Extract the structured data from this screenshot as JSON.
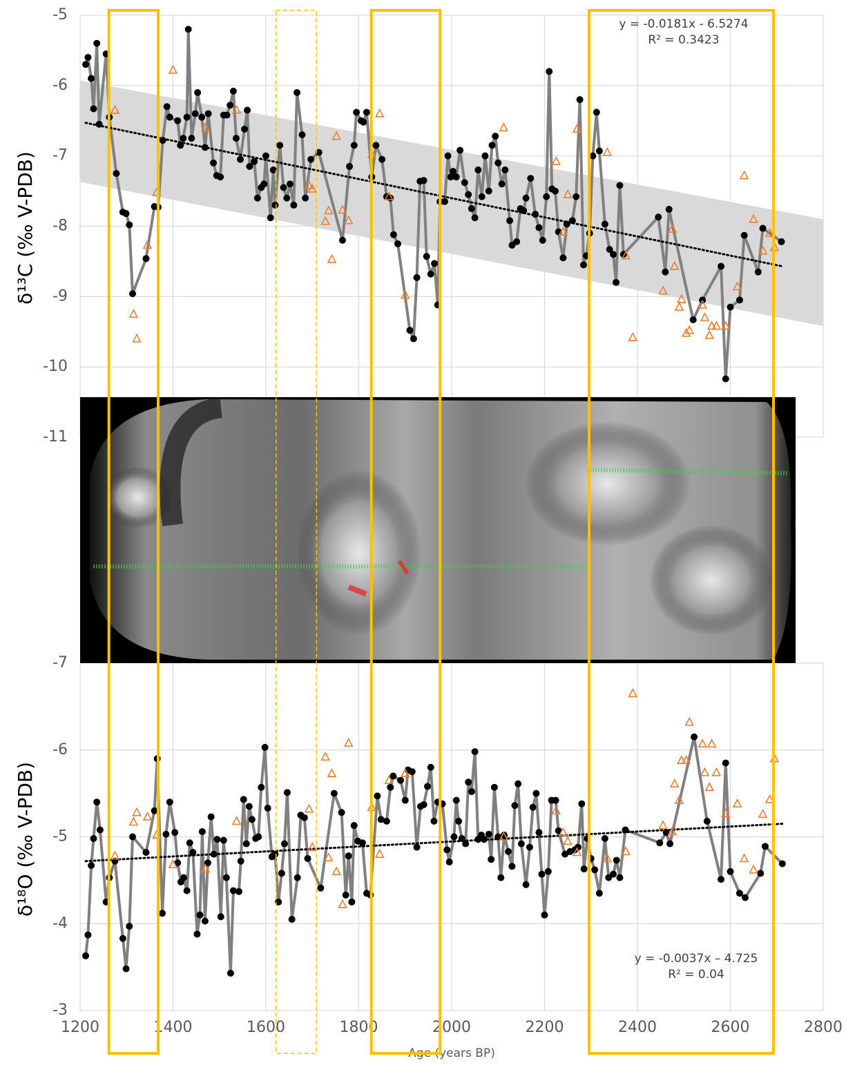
{
  "chart_data": [
    {
      "type": "scatter",
      "ylabel": "δ¹³C (‰ V-PDB)",
      "xlim": [
        1200,
        2800
      ],
      "xticks": [
        1200,
        1400,
        1600,
        1800,
        2000,
        2200,
        2400,
        2600,
        2800
      ],
      "show_x_labels": false,
      "ylim": [
        -11,
        -5
      ],
      "yticks": [
        -11,
        -10,
        -9,
        -8,
        -7,
        -6,
        -5
      ],
      "grid": true,
      "annotations": [
        "y = -0.0181x - 6.5274",
        "R² = 0.3423"
      ],
      "band": {
        "x": [
          1200,
          2800
        ],
        "upper": [
          -5.93,
          -7.9
        ],
        "lower": [
          -7.37,
          -9.42
        ],
        "color": "#d9d9d9"
      },
      "trend": {
        "x": [
          1212,
          2712
        ],
        "values": [
          -6.53,
          -8.57
        ],
        "color": "#000000"
      },
      "series": [
        {
          "marker": "circle",
          "color": "#000000",
          "line_color": "#808080",
          "x": [
            1212,
            1217,
            1224,
            1229,
            1236,
            1241,
            1256,
            1263,
            1278,
            1292,
            1299,
            1306,
            1313,
            1342,
            1360,
            1368,
            1378,
            1387,
            1393,
            1410,
            1416,
            1422,
            1430,
            1433,
            1440,
            1448,
            1453,
            1462,
            1469,
            1476,
            1487,
            1494,
            1502,
            1509,
            1516,
            1523,
            1530,
            1536,
            1545,
            1554,
            1560,
            1565,
            1575,
            1582,
            1590,
            1596,
            1600,
            1610,
            1616,
            1620,
            1630,
            1638,
            1645,
            1652,
            1660,
            1667,
            1678,
            1685,
            1697,
            1714,
            1765,
            1780,
            1790,
            1795,
            1805,
            1810,
            1817,
            1828,
            1837,
            1850,
            1860,
            1868,
            1875,
            1884,
            1910,
            1918,
            1925,
            1932,
            1940,
            1946,
            1955,
            1963,
            1970,
            1975,
            1985,
            1992,
            1998,
            2003,
            2010,
            2018,
            2028,
            2036,
            2043,
            2050,
            2057,
            2065,
            2072,
            2080,
            2087,
            2094,
            2100,
            2108,
            2115,
            2125,
            2130,
            2140,
            2148,
            2155,
            2160,
            2170,
            2180,
            2188,
            2196,
            2204,
            2210,
            2216,
            2223,
            2230,
            2240,
            2248,
            2260,
            2268,
            2276,
            2284,
            2290,
            2297,
            2304,
            2312,
            2318,
            2330,
            2340,
            2348,
            2354,
            2362,
            2370,
            2445,
            2460,
            2468,
            2520,
            2540,
            2580,
            2590,
            2600,
            2620,
            2630,
            2660,
            2670,
            2710
          ],
          "values": [
            -5.7,
            -5.6,
            -5.9,
            -6.33,
            -5.4,
            -6.55,
            -5.55,
            -6.45,
            -7.25,
            -7.8,
            -7.82,
            -7.98,
            -8.96,
            -8.46,
            -7.72,
            -7.73,
            -6.78,
            -6.3,
            -6.45,
            -6.5,
            -6.85,
            -6.75,
            -6.45,
            -5.2,
            -6.75,
            -6.4,
            -6.1,
            -6.45,
            -6.88,
            -6.4,
            -7.1,
            -7.28,
            -7.3,
            -6.42,
            -6.42,
            -6.28,
            -6.08,
            -6.75,
            -7.05,
            -6.62,
            -6.35,
            -7.15,
            -7.08,
            -7.6,
            -7.45,
            -7.4,
            -7.0,
            -7.88,
            -7.2,
            -7.7,
            -6.85,
            -7.45,
            -7.6,
            -7.4,
            -7.7,
            -6.1,
            -6.7,
            -7.6,
            -7.05,
            -6.95,
            -8.2,
            -7.15,
            -6.85,
            -6.38,
            -6.5,
            -6.52,
            -6.38,
            -7.3,
            -6.85,
            -7.05,
            -7.58,
            -7.6,
            -8.12,
            -8.25,
            -9.48,
            -9.6,
            -8.73,
            -7.36,
            -7.35,
            -8.43,
            -8.68,
            -8.53,
            -9.12,
            -7.65,
            -7.65,
            -7.0,
            -7.3,
            -7.22,
            -7.3,
            -6.92,
            -7.38,
            -7.55,
            -7.75,
            -7.88,
            -7.2,
            -7.58,
            -7.0,
            -7.5,
            -6.85,
            -6.72,
            -7.1,
            -7.4,
            -7.2,
            -7.92,
            -8.27,
            -8.22,
            -7.75,
            -7.78,
            -7.6,
            -7.32,
            -7.83,
            -8.02,
            -8.2,
            -7.58,
            -5.8,
            -7.47,
            -7.5,
            -8.08,
            -8.45,
            -7.97,
            -7.92,
            -7.58,
            -6.2,
            -8.55,
            -8.42,
            -8.1,
            -7.0,
            -6.38,
            -6.93,
            -7.97,
            -8.33,
            -8.4,
            -8.8,
            -7.42,
            -8.4,
            -7.87,
            -8.65,
            -7.76,
            -9.33,
            -9.05,
            -8.57,
            -10.17,
            -9.15,
            -9.05,
            -8.13,
            -8.65,
            -8.03,
            -8.22
          ]
        },
        {
          "marker": "triangle",
          "color": "#ed7d31",
          "x": [
            1275,
            1315,
            1322,
            1345,
            1365,
            1400,
            1470,
            1537,
            1693,
            1700,
            1728,
            1735,
            1742,
            1752,
            1765,
            1778,
            1828,
            1845,
            1865,
            1900,
            2112,
            2225,
            2240,
            2250,
            2270,
            2335,
            2375,
            2390,
            2455,
            2475,
            2480,
            2490,
            2495,
            2505,
            2512,
            2540,
            2545,
            2555,
            2560,
            2570,
            2590,
            2615,
            2630,
            2650,
            2670,
            2685,
            2695
          ],
          "values": [
            -6.35,
            -9.25,
            -9.6,
            -8.27,
            -7.52,
            -5.78,
            -6.6,
            -6.35,
            -7.42,
            -7.47,
            -7.93,
            -7.78,
            -8.47,
            -6.72,
            -7.77,
            -7.92,
            -6.98,
            -6.4,
            -7.58,
            -8.98,
            -6.6,
            -7.08,
            -8.08,
            -7.55,
            -6.62,
            -6.95,
            -8.42,
            -9.58,
            -8.92,
            -8.04,
            -8.57,
            -9.15,
            -9.04,
            -9.52,
            -9.48,
            -9.12,
            -9.3,
            -9.55,
            -9.42,
            -9.42,
            -9.42,
            -8.86,
            -7.28,
            -7.9,
            -8.35,
            -8.1,
            -8.3
          ]
        }
      ]
    },
    {
      "type": "scatter",
      "ylabel": "δ¹⁸O (‰ V-PDB)",
      "xlabel": "Age (years BP)",
      "xlim": [
        1200,
        2800
      ],
      "xticks": [
        1200,
        1400,
        1600,
        1800,
        2000,
        2200,
        2400,
        2600,
        2800
      ],
      "show_x_labels": true,
      "ylim": [
        -3,
        -7
      ],
      "yticks": [
        -7,
        -6,
        -5,
        -4,
        -3
      ],
      "grid": true,
      "annotations": [
        "y = -0.0037x – 4.725",
        "R² = 0.04"
      ],
      "trend": {
        "x": [
          1212,
          2712
        ],
        "values": [
          -4.72,
          -5.15
        ],
        "color": "#000000"
      },
      "series": [
        {
          "marker": "circle",
          "color": "#000000",
          "line_color": "#808080",
          "x": [
            1212,
            1217,
            1224,
            1229,
            1236,
            1243,
            1256,
            1263,
            1275,
            1292,
            1299,
            1306,
            1313,
            1342,
            1360,
            1366,
            1377,
            1385,
            1393,
            1404,
            1410,
            1417,
            1423,
            1430,
            1436,
            1443,
            1452,
            1458,
            1463,
            1469,
            1475,
            1482,
            1488,
            1495,
            1503,
            1509,
            1515,
            1524,
            1530,
            1542,
            1546,
            1552,
            1558,
            1564,
            1570,
            1578,
            1584,
            1590,
            1598,
            1604,
            1613,
            1620,
            1627,
            1634,
            1640,
            1646,
            1656,
            1668,
            1675,
            1683,
            1690,
            1718,
            1747,
            1763,
            1772,
            1778,
            1785,
            1790,
            1798,
            1808,
            1817,
            1825,
            1840,
            1848,
            1860,
            1868,
            1874,
            1890,
            1900,
            1906,
            1915,
            1925,
            1933,
            1940,
            1948,
            1955,
            1962,
            1970,
            1980,
            1990,
            1995,
            2005,
            2010,
            2015,
            2022,
            2030,
            2036,
            2043,
            2050,
            2057,
            2064,
            2070,
            2080,
            2085,
            2092,
            2100,
            2106,
            2113,
            2122,
            2130,
            2136,
            2143,
            2150,
            2160,
            2168,
            2175,
            2182,
            2188,
            2194,
            2200,
            2208,
            2215,
            2224,
            2230,
            2244,
            2255,
            2265,
            2272,
            2280,
            2285,
            2292,
            2300,
            2308,
            2318,
            2330,
            2338,
            2348,
            2355,
            2362,
            2374,
            2448,
            2462,
            2470,
            2522,
            2550,
            2580,
            2590,
            2600,
            2620,
            2632,
            2665,
            2675,
            2712
          ],
          "values": [
            -3.63,
            -3.87,
            -4.67,
            -4.98,
            -5.4,
            -5.08,
            -4.25,
            -4.53,
            -4.72,
            -3.83,
            -3.48,
            -3.97,
            -5.0,
            -4.82,
            -5.3,
            -5.9,
            -4.12,
            -5.03,
            -5.4,
            -5.05,
            -4.7,
            -4.48,
            -4.53,
            -4.38,
            -4.93,
            -4.82,
            -3.88,
            -4.1,
            -5.06,
            -4.03,
            -4.7,
            -5.23,
            -4.8,
            -4.97,
            -4.08,
            -4.96,
            -4.53,
            -3.43,
            -4.38,
            -4.37,
            -4.72,
            -5.43,
            -4.92,
            -5.35,
            -5.2,
            -4.98,
            -5.0,
            -5.57,
            -6.03,
            -5.33,
            -4.77,
            -4.8,
            -4.25,
            -4.58,
            -4.92,
            -5.51,
            -4.05,
            -4.53,
            -5.25,
            -5.22,
            -4.75,
            -4.41,
            -5.5,
            -5.28,
            -4.33,
            -4.78,
            -4.25,
            -5.13,
            -4.95,
            -4.93,
            -4.35,
            -4.33,
            -5.47,
            -5.2,
            -5.18,
            -5.57,
            -5.7,
            -5.65,
            -5.42,
            -5.77,
            -5.75,
            -4.88,
            -5.35,
            -5.37,
            -5.58,
            -5.8,
            -5.18,
            -5.4,
            -5.38,
            -4.85,
            -4.71,
            -5.0,
            -5.42,
            -5.18,
            -4.98,
            -4.92,
            -5.63,
            -5.52,
            -5.98,
            -4.97,
            -5.02,
            -4.97,
            -5.03,
            -4.74,
            -5.57,
            -5.0,
            -4.53,
            -5.02,
            -4.83,
            -4.66,
            -5.36,
            -5.61,
            -4.92,
            -4.45,
            -4.88,
            -5.34,
            -5.5,
            -5.05,
            -4.57,
            -4.1,
            -4.6,
            -5.42,
            -5.42,
            -5.07,
            -4.8,
            -4.83,
            -4.85,
            -4.88,
            -5.38,
            -4.63,
            -4.98,
            -4.75,
            -4.62,
            -4.35,
            -4.98,
            -4.53,
            -4.57,
            -4.73,
            -4.53,
            -5.08,
            -4.93,
            -5.05,
            -4.92,
            -6.15,
            -5.18,
            -4.51,
            -5.85,
            -4.6,
            -4.35,
            -4.3,
            -4.58,
            -4.89,
            -4.69
          ]
        },
        {
          "marker": "triangle",
          "color": "#ed7d31",
          "x": [
            1275,
            1315,
            1322,
            1345,
            1365,
            1400,
            1470,
            1537,
            1693,
            1700,
            1728,
            1735,
            1742,
            1752,
            1765,
            1778,
            1828,
            1845,
            1865,
            1900,
            2112,
            2225,
            2240,
            2250,
            2270,
            2335,
            2375,
            2390,
            2455,
            2475,
            2480,
            2490,
            2495,
            2505,
            2512,
            2540,
            2545,
            2555,
            2560,
            2570,
            2590,
            2615,
            2630,
            2650,
            2670,
            2685,
            2695
          ],
          "values": [
            -4.78,
            -5.17,
            -5.28,
            -5.23,
            -5.02,
            -4.68,
            -4.63,
            -5.18,
            -5.32,
            -4.88,
            -5.92,
            -4.76,
            -5.73,
            -4.6,
            -4.22,
            -6.08,
            -5.34,
            -4.8,
            -5.65,
            -5.73,
            -5.0,
            -5.3,
            -5.05,
            -4.95,
            -4.82,
            -4.75,
            -4.83,
            -6.65,
            -5.13,
            -5.06,
            -5.61,
            -5.42,
            -5.88,
            -5.88,
            -6.32,
            -6.07,
            -5.74,
            -5.57,
            -6.07,
            -5.74,
            -5.27,
            -5.38,
            -4.75,
            -4.62,
            -5.26,
            -5.43,
            -5.9
          ]
        }
      ]
    }
  ],
  "spans": {
    "color": "#ffc000",
    "ranges": [
      {
        "x": [
          1262,
          1368
        ],
        "style": "solid"
      },
      {
        "x": [
          1622,
          1709
        ],
        "style": "dashed"
      },
      {
        "x": [
          1827,
          1975
        ],
        "style": "solid"
      },
      {
        "x": [
          2296,
          2693
        ],
        "style": "solid"
      }
    ]
  }
}
